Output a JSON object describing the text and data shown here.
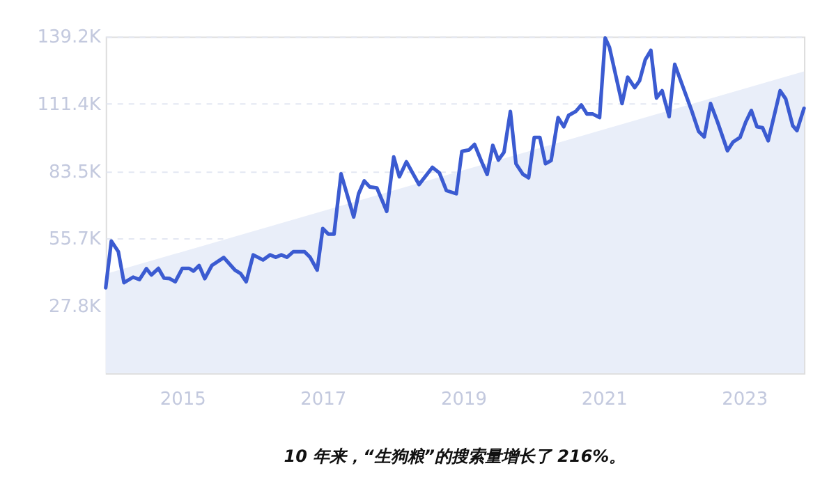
{
  "chart_data": {
    "type": "line",
    "title": "10 年来，“生狗粮”的搜索量增长了 216%。",
    "xlim": [
      2013.91,
      2023.85
    ],
    "xticks": [
      2015,
      2017,
      2019,
      2021,
      2023
    ],
    "ylim": [
      0,
      139.2
    ],
    "yticks": [
      {
        "value": 27.8,
        "label": "27.8K"
      },
      {
        "value": 55.7,
        "label": "55.7K"
      },
      {
        "value": 83.5,
        "label": "83.5K"
      },
      {
        "value": 111.4,
        "label": "111.4K"
      },
      {
        "value": 139.2,
        "label": "139.2K"
      }
    ],
    "grid": "y",
    "series": [
      {
        "type": "area",
        "color": "#e9eef9",
        "x": [
          2013.91,
          2023.85
        ],
        "values": [
          41,
          124.8
        ]
      },
      {
        "type": "line",
        "color": "#3b5bd1",
        "x": [
          2013.91,
          2013.99,
          2014.09,
          2014.17,
          2014.3,
          2014.39,
          2014.49,
          2014.56,
          2014.66,
          2014.74,
          2014.82,
          2014.9,
          2015.0,
          2015.1,
          2015.16,
          2015.24,
          2015.32,
          2015.42,
          2015.59,
          2015.75,
          2015.83,
          2015.91,
          2016.01,
          2016.15,
          2016.25,
          2016.33,
          2016.41,
          2016.49,
          2016.58,
          2016.74,
          2016.82,
          2016.92,
          2017.0,
          2017.08,
          2017.16,
          2017.26,
          2017.44,
          2017.51,
          2017.59,
          2017.67,
          2017.77,
          2017.91,
          2018.01,
          2018.09,
          2018.19,
          2018.37,
          2018.56,
          2018.66,
          2018.76,
          2018.9,
          2018.98,
          2019.08,
          2019.16,
          2019.26,
          2019.34,
          2019.42,
          2019.5,
          2019.58,
          2019.67,
          2019.75,
          2019.85,
          2019.93,
          2020.01,
          2020.09,
          2020.17,
          2020.25,
          2020.35,
          2020.43,
          2020.5,
          2020.6,
          2020.68,
          2020.76,
          2020.84,
          2020.94,
          2021.02,
          2021.08,
          2021.26,
          2021.34,
          2021.44,
          2021.51,
          2021.59,
          2021.67,
          2021.75,
          2021.83,
          2021.93,
          2022.01,
          2022.13,
          2022.25,
          2022.35,
          2022.43,
          2022.52,
          2022.62,
          2022.76,
          2022.84,
          2022.94,
          2023.02,
          2023.1,
          2023.18,
          2023.26,
          2023.34,
          2023.51,
          2023.59,
          2023.69,
          2023.75,
          2023.85
        ],
        "values": [
          35.3,
          54.6,
          50.2,
          37.4,
          39.7,
          38.7,
          43.2,
          40.6,
          43.3,
          39.3,
          39.1,
          37.8,
          43.3,
          43.3,
          42.2,
          44.5,
          39.1,
          44.5,
          47.8,
          42.6,
          41.2,
          37.8,
          48.9,
          46.8,
          48.9,
          47.9,
          48.9,
          47.9,
          50.2,
          50.2,
          47.9,
          42.6,
          59.8,
          57.5,
          57.5,
          82.4,
          64.6,
          74.2,
          79.5,
          77.0,
          76.6,
          66.9,
          89.4,
          81.2,
          87.4,
          78.0,
          85.1,
          82.8,
          75.5,
          74.2,
          91.7,
          92.3,
          94.6,
          87.5,
          82.2,
          94.2,
          88.1,
          91.4,
          108.2,
          86.6,
          82.2,
          80.8,
          97.5,
          97.5,
          86.6,
          87.9,
          105.7,
          101.9,
          106.6,
          108.2,
          110.9,
          107.2,
          107.2,
          105.7,
          138.6,
          134.8,
          111.5,
          122.4,
          118.1,
          121.0,
          129.6,
          133.5,
          113.8,
          116.8,
          106.1,
          127.7,
          118.1,
          108.6,
          100.0,
          97.7,
          111.5,
          103.8,
          92.0,
          95.6,
          97.5,
          103.8,
          108.6,
          101.9,
          101.5,
          96.1,
          116.8,
          113.4,
          102.3,
          100.3,
          109.5
        ]
      }
    ]
  }
}
